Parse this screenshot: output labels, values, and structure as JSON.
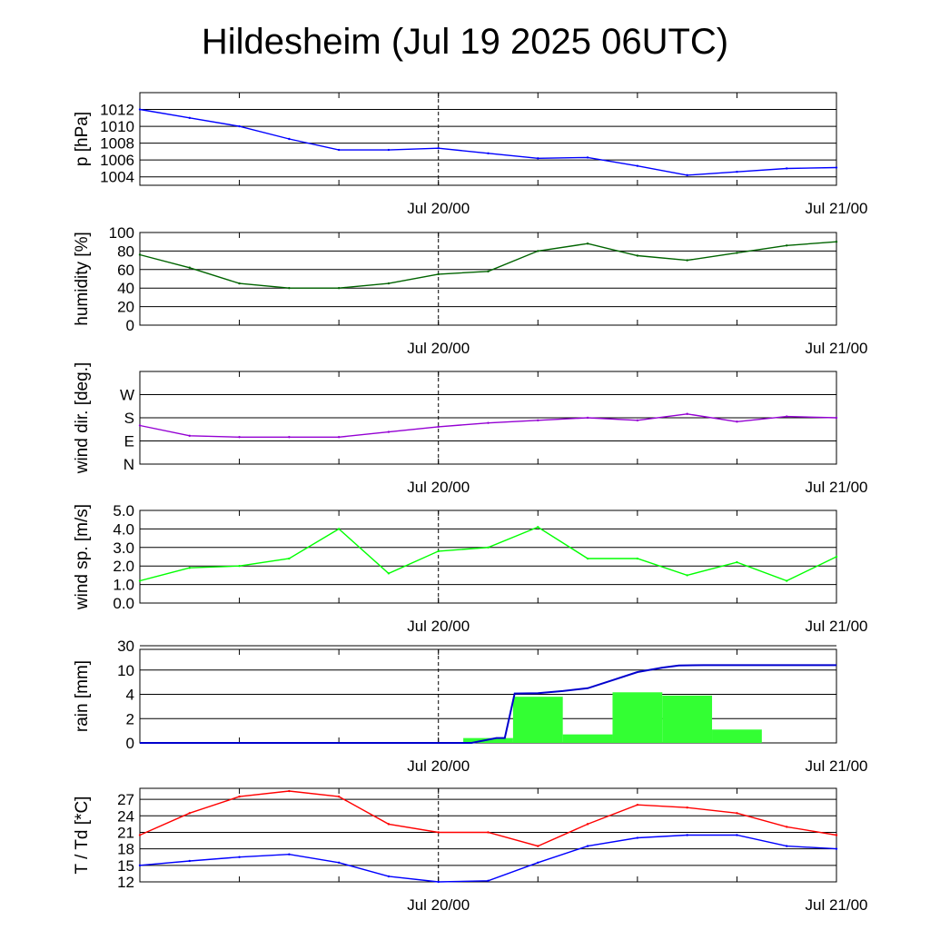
{
  "title": "Hildesheim (Jul 19 2025 06UTC)",
  "colors": {
    "pressure": "#0000ff",
    "humidity": "#006400",
    "wind_dir": "#9400d3",
    "wind_speed": "#00ff00",
    "rain_cumulative": "#0000cd",
    "rain_bars": "#33ff33",
    "temperature": "#ff0000",
    "dewpoint": "#0000ff"
  },
  "chart_data": [
    {
      "type": "line",
      "ylabel": "p [hPa]",
      "yticks": [
        1004,
        1006,
        1008,
        1010,
        1012
      ],
      "ytick_labels": [
        "1004",
        "1006",
        "1008",
        "1010",
        "1012"
      ],
      "ylim": [
        1003,
        1014
      ],
      "x_ticks": [
        "Jul 20/00",
        "Jul 21/00"
      ],
      "x_hours": [
        0,
        3,
        6,
        9,
        12,
        15,
        18,
        21,
        24,
        27,
        30,
        33,
        36,
        39,
        42
      ],
      "series": [
        {
          "values": [
            1012,
            1011,
            1010,
            1008.5,
            1007.2,
            1007.2,
            1007.4,
            1006.8,
            1006.2,
            1006.3,
            1005.3,
            1004.2,
            1004.6,
            1005.0,
            1005.1
          ]
        }
      ]
    },
    {
      "type": "line",
      "ylabel": "humidity [%]",
      "yticks": [
        0,
        20,
        40,
        60,
        80,
        100
      ],
      "ytick_labels": [
        "0",
        "20",
        "40",
        "60",
        "80",
        "100"
      ],
      "ylim": [
        0,
        100
      ],
      "x_ticks": [
        "Jul 20/00",
        "Jul 21/00"
      ],
      "x_hours": [
        0,
        3,
        6,
        9,
        12,
        15,
        18,
        21,
        24,
        27,
        30,
        33,
        36,
        39,
        42
      ],
      "series": [
        {
          "values": [
            76,
            62,
            45,
            40,
            40,
            45,
            55,
            58,
            80,
            88,
            75,
            70,
            78,
            86,
            90
          ]
        }
      ]
    },
    {
      "type": "line",
      "ylabel": "wind dir. [deg.]",
      "yticks": [
        0,
        90,
        180,
        270
      ],
      "ytick_labels": [
        "N",
        "E",
        "S",
        "W"
      ],
      "ylim": [
        0,
        360
      ],
      "x_ticks": [
        "Jul 20/00",
        "Jul 21/00"
      ],
      "x_hours": [
        0,
        3,
        6,
        9,
        12,
        15,
        18,
        21,
        24,
        27,
        30,
        33,
        36,
        39,
        42
      ],
      "series": [
        {
          "values": [
            150,
            110,
            105,
            105,
            105,
            125,
            145,
            160,
            170,
            180,
            170,
            195,
            165,
            185,
            180
          ]
        }
      ]
    },
    {
      "type": "line",
      "ylabel": "wind sp. [m/s]",
      "yticks": [
        0,
        1,
        2,
        3,
        4,
        5
      ],
      "ytick_labels": [
        "0.0",
        "1.0",
        "2.0",
        "3.0",
        "4.0",
        "5.0"
      ],
      "ylim": [
        0,
        5
      ],
      "x_ticks": [
        "Jul 20/00",
        "Jul 21/00"
      ],
      "x_hours": [
        0,
        3,
        6,
        9,
        12,
        15,
        18,
        21,
        24,
        27,
        30,
        33,
        36,
        39,
        42
      ],
      "series": [
        {
          "values": [
            1.2,
            1.9,
            2.0,
            2.4,
            4.0,
            1.6,
            2.8,
            3.0,
            4.1,
            2.4,
            2.4,
            1.5,
            2.2,
            1.2,
            2.5
          ]
        }
      ]
    },
    {
      "type": "bar",
      "ylabel": "rain [mm]",
      "yticks": [
        0,
        2,
        4,
        10,
        30
      ],
      "ytick_labels": [
        "0",
        "2",
        "4",
        "10",
        "30"
      ],
      "x_ticks": [
        "Jul 20/00",
        "Jul 21/00"
      ],
      "bars": [
        {
          "start_hour": 19.5,
          "end_hour": 22.5,
          "value": 0.4
        },
        {
          "start_hour": 22.5,
          "end_hour": 25.5,
          "value": 3.8
        },
        {
          "start_hour": 25.5,
          "end_hour": 28.5,
          "value": 0.7
        },
        {
          "start_hour": 28.5,
          "end_hour": 31.5,
          "value": 4.5
        },
        {
          "start_hour": 31.5,
          "end_hour": 34.5,
          "value": 3.9
        },
        {
          "start_hour": 34.5,
          "end_hour": 37.5,
          "value": 1.1
        }
      ],
      "cumulative": {
        "x_hours": [
          0,
          20,
          21.5,
          22.0,
          22.6,
          24,
          25.5,
          27,
          28.5,
          30,
          31.5,
          32.5,
          34,
          42
        ],
        "values": [
          0,
          0,
          0.4,
          0.4,
          4.2,
          4.3,
          4.8,
          5.5,
          7.5,
          9.5,
          12.0,
          13.8,
          14.0,
          14.0
        ]
      }
    },
    {
      "type": "line",
      "ylabel": "T / Td [*C]",
      "yticks": [
        12,
        15,
        18,
        21,
        24,
        27
      ],
      "ytick_labels": [
        "12",
        "15",
        "18",
        "21",
        "24",
        "27"
      ],
      "ylim": [
        12,
        29
      ],
      "x_ticks": [
        "Jul 20/00",
        "Jul 21/00"
      ],
      "x_hours": [
        0,
        3,
        6,
        9,
        12,
        15,
        18,
        21,
        24,
        27,
        30,
        33,
        36,
        39,
        42
      ],
      "series": [
        {
          "values": [
            20.5,
            24.5,
            27.5,
            28.5,
            27.5,
            22.5,
            21.0,
            21.0,
            18.5,
            22.5,
            26.0,
            25.5,
            24.5,
            22.0,
            20.5
          ]
        },
        {
          "values": [
            15.0,
            15.8,
            16.5,
            17.0,
            15.5,
            13.0,
            12.0,
            12.2,
            15.5,
            18.5,
            20.0,
            20.5,
            20.5,
            18.5,
            18.0
          ]
        }
      ]
    }
  ]
}
